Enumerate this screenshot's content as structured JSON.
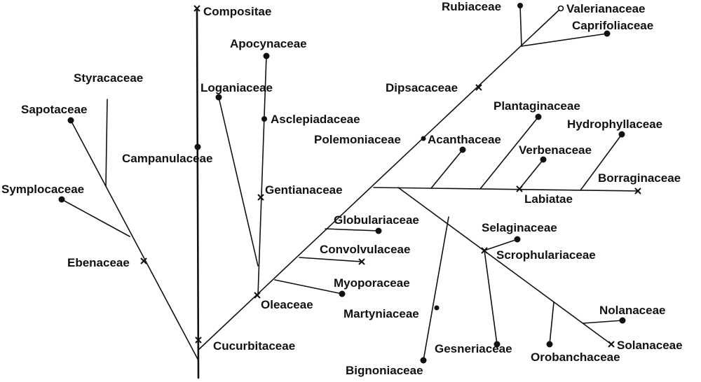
{
  "diagram": {
    "labels": {
      "compositae": "Compositae",
      "apocynaceae": "Apocynaceae",
      "styracaceae": "Styracaceae",
      "loganiaceae": "Loganiaceae",
      "sapotaceae": "Sapotaceae",
      "asclepiadaceae": "Asclepiadaceae",
      "campanulaceae": "Campanulaceae",
      "gentianaceae": "Gentianaceae",
      "symplocaceae": "Symplocaceae",
      "ebenaceae": "Ebenaceae",
      "oleaceae": "Oleaceae",
      "cucurbitaceae": "Cucurbitaceae",
      "rubiaceae": "Rubiaceae",
      "valerianaceae": "Valerianaceae",
      "caprifoliaceae": "Caprifoliaceae",
      "dipsacaceae": "Dipsacaceae",
      "plantaginaceae": "Plantaginaceae",
      "hydrophyllaceae": "Hydrophyllaceae",
      "polemoniaceae": "Polemoniaceae",
      "acanthaceae": "Acanthaceae",
      "verbenaceae": "Verbenaceae",
      "borraginaceae": "Borraginaceae",
      "labiatae": "Labiatae",
      "globulariaceae": "Globulariaceae",
      "selaginaceae": "Selaginaceae",
      "convolvulaceae": "Convolvulaceae",
      "scrophulariaceae": "Scrophulariaceae",
      "myoporaceae": "Myoporaceae",
      "martyniaceae": "Martyniaceae",
      "nolanaceae": "Nolanaceae",
      "gesneriaceae": "Gesneriaceae",
      "orobanchaceae": "Orobanchaceae",
      "solanaceae": "Solanaceae",
      "bignoniaceae": "Bignoniaceae"
    }
  }
}
